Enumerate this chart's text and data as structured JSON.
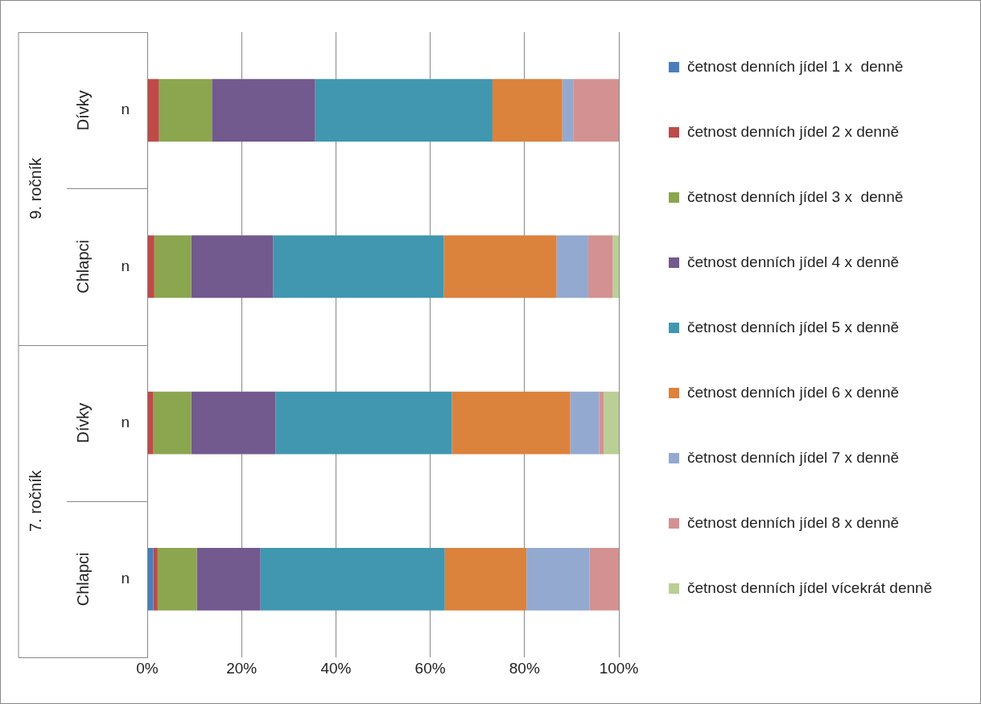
{
  "chart_data": {
    "type": "bar",
    "orientation": "horizontal",
    "stacked": true,
    "categories": [
      "n",
      "n",
      "n",
      "n"
    ],
    "annotations": [
      "Dívky",
      "Chlapci",
      "Dívky",
      "Chlapci",
      "9. ročník",
      "7. ročník"
    ],
    "series": [
      {
        "name": "četnost denních jídel 1 x  denně",
        "color": "#4a7ebb",
        "values": [
          0,
          0,
          0,
          1.3
        ]
      },
      {
        "name": "četnost denních jídel 2 x denně",
        "color": "#be4b48",
        "values": [
          2.5,
          1.5,
          1.3,
          0.9
        ]
      },
      {
        "name": "četnost denních jídel 3 x  denně",
        "color": "#8ba64e",
        "values": [
          11.2,
          7.8,
          8.0,
          8.3
        ]
      },
      {
        "name": "četnost denních jídel 4 x denně",
        "color": "#72598e",
        "values": [
          21.9,
          17.4,
          17.9,
          13.5
        ]
      },
      {
        "name": "četnost denních jídel 5 x denně",
        "color": "#4197b0",
        "values": [
          37.6,
          36.2,
          37.4,
          39.1
        ]
      },
      {
        "name": "četnost denních jídel 6 x denně",
        "color": "#db823d",
        "values": [
          14.8,
          23.9,
          25.1,
          17.3
        ]
      },
      {
        "name": "četnost denních jídel 7 x denně",
        "color": "#94a9d0",
        "values": [
          2.3,
          6.7,
          6.1,
          13.4
        ]
      },
      {
        "name": "četnost denních jídel 8 x denně",
        "color": "#d39291",
        "values": [
          9.7,
          5.2,
          1.0,
          6.2
        ]
      },
      {
        "name": "četnost denních jídel vícekrát denně",
        "color": "#b9cf95",
        "values": [
          0,
          1.3,
          3.2,
          0
        ]
      }
    ],
    "xlim": [
      0,
      100
    ],
    "xticks": [
      {
        "value": 0,
        "label": "0%"
      },
      {
        "value": 20,
        "label": "20%"
      },
      {
        "value": 40,
        "label": "40%"
      },
      {
        "value": 60,
        "label": "60%"
      },
      {
        "value": 80,
        "label": "80%"
      },
      {
        "value": 100,
        "label": "100%"
      }
    ],
    "grid": "x",
    "legend": "right"
  }
}
